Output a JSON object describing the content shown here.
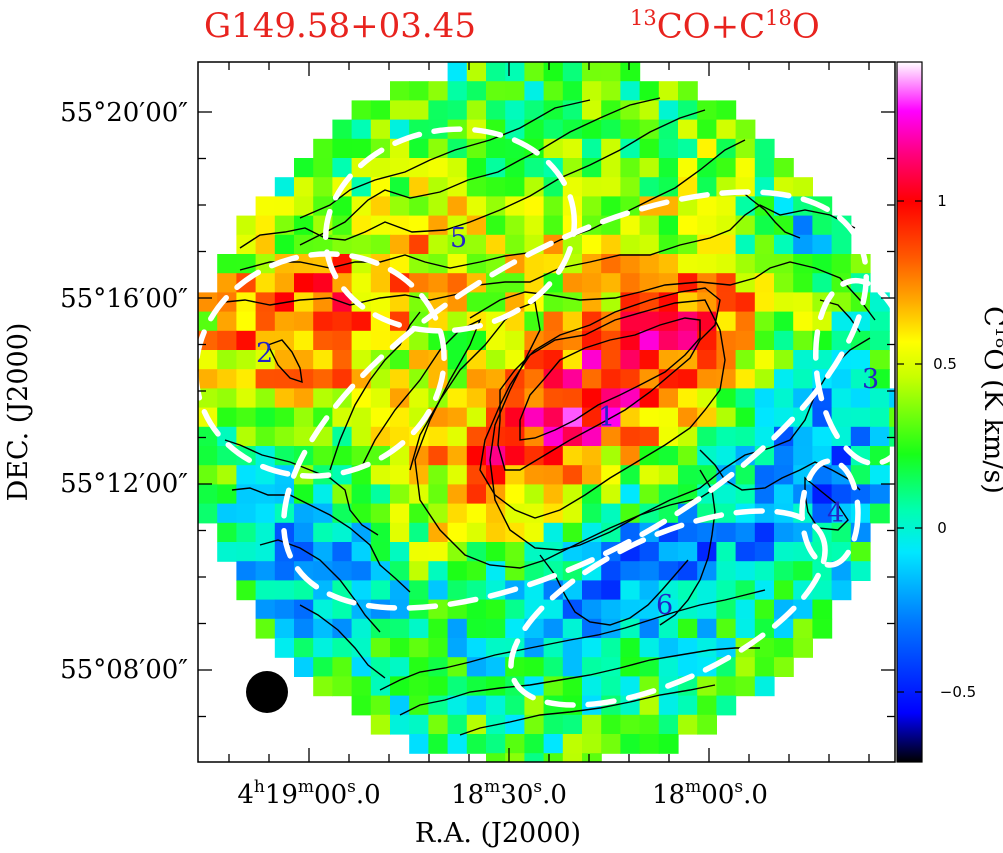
{
  "title": {
    "left": "G149.58+03.45",
    "right_prefix": "13",
    "right_mid": "CO+C",
    "right_sup": "18",
    "right_suffix": "O"
  },
  "axes": {
    "x_title": "R.A. (J2000)",
    "y_title": "DEC. (J2000)",
    "x_ticks": [
      {
        "h": "4",
        "hu": "h",
        "m": "19",
        "mu": "m",
        "s": "00",
        "su": "s",
        "frac": ".0"
      },
      {
        "h": "",
        "hu": "",
        "m": "18",
        "mu": "m",
        "s": "30",
        "su": "s",
        "frac": ".0"
      },
      {
        "h": "",
        "hu": "",
        "m": "18",
        "mu": "m",
        "s": "00",
        "su": "s",
        "frac": ".0"
      }
    ],
    "y_ticks": [
      "55°20′00″",
      "55°16′00″",
      "55°12′00″",
      "55°08′00″"
    ]
  },
  "colorbar": {
    "label": "C18O (K km/s)",
    "label_base": "C",
    "label_sup": "18",
    "label_rest": "O (K km/s)",
    "ticks": [
      "1",
      "0.5",
      "0",
      "−0.5"
    ],
    "tick_values": [
      1,
      0.5,
      0,
      -0.5
    ],
    "range": [
      -0.72,
      1.42
    ]
  },
  "region_labels": [
    "1",
    "2",
    "3",
    "4",
    "5",
    "6"
  ],
  "colors": {
    "title": "#e8231e",
    "contour": "#000000",
    "ellipse": "#ffffff",
    "region_label": "#2323c8"
  },
  "chart_data": {
    "type": "heatmap",
    "title": "G149.58+03.45 13CO+C18O",
    "xlabel": "R.A. (J2000)",
    "ylabel": "DEC. (J2000)",
    "colorbar_label": "C18O (K km/s)",
    "value_range": [
      -0.72,
      1.42
    ],
    "peak_value": 1.35,
    "features": [
      "C18O integrated intensity map",
      "13CO contours",
      "dashed ellipses marking regions 1-6",
      "beam at lower left"
    ]
  }
}
